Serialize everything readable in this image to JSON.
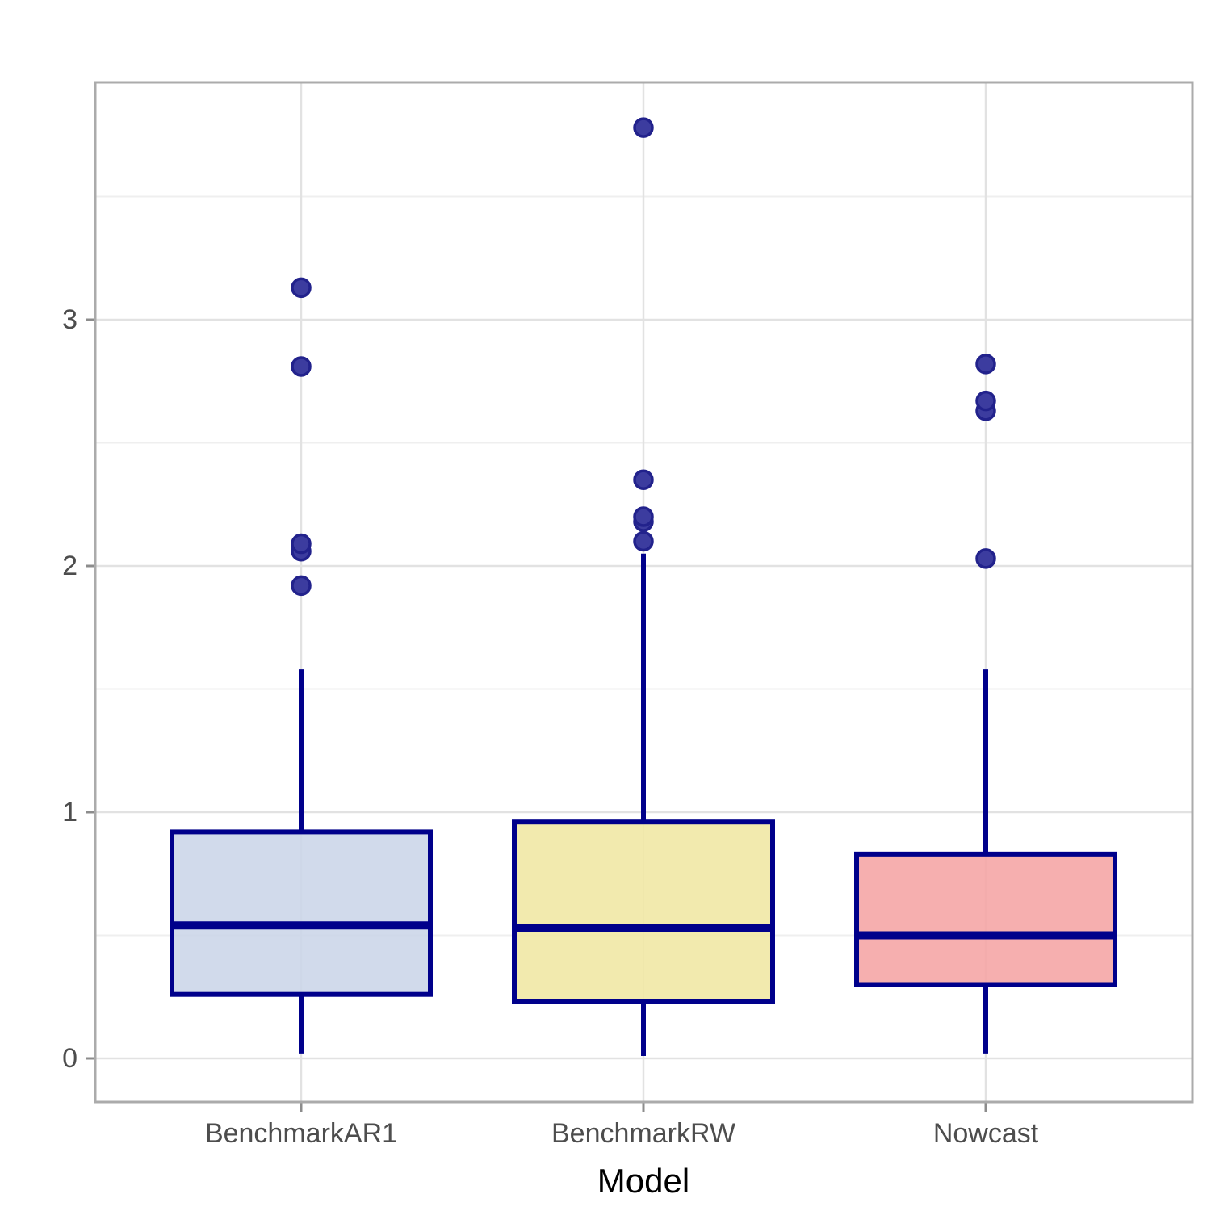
{
  "chart_data": {
    "type": "boxplot",
    "xlabel": "Model",
    "ylabel": "",
    "categories": [
      "BenchmarkAR1",
      "BenchmarkRW",
      "Nowcast"
    ],
    "y_ticks": [
      0,
      1,
      2,
      3
    ],
    "y_tick_labels": [
      "0",
      "1",
      "2",
      "3"
    ],
    "y_minor_ticks": [
      0.5,
      1.5,
      2.5,
      3.5
    ],
    "ylim": [
      -0.18,
      3.96
    ],
    "grid": true,
    "legend": "none",
    "series": [
      {
        "name": "BenchmarkAR1",
        "fill": "#CBD5E8",
        "q1": 0.26,
        "median": 0.54,
        "q3": 0.92,
        "whisker_low": 0.02,
        "whisker_high": 1.58,
        "outliers": [
          1.92,
          2.06,
          2.09,
          2.81,
          3.13
        ]
      },
      {
        "name": "BenchmarkRW",
        "fill": "#F0E7A3",
        "q1": 0.23,
        "median": 0.53,
        "q3": 0.96,
        "whisker_low": 0.01,
        "whisker_high": 2.05,
        "outliers": [
          2.1,
          2.18,
          2.2,
          2.35,
          3.78
        ]
      },
      {
        "name": "Nowcast",
        "fill": "#F5A4A4",
        "q1": 0.3,
        "median": 0.5,
        "q3": 0.83,
        "whisker_low": 0.02,
        "whisker_high": 1.58,
        "outliers": [
          2.03,
          2.63,
          2.67,
          2.82
        ]
      }
    ],
    "colors": {
      "box_border": "#00008B",
      "median_line": "#00008B",
      "whisker": "#00008B",
      "outlier_fill": "#3C3C9F",
      "outlier_stroke": "#22228C",
      "grid_major": "#E2E2E2",
      "grid_minor": "#EFEFEF",
      "panel_border": "#ABABAB",
      "tick_mark": "#8C8C8C",
      "axis_text": "#4D4D4D",
      "axis_title": "#000000",
      "background": "#FFFFFF"
    }
  }
}
